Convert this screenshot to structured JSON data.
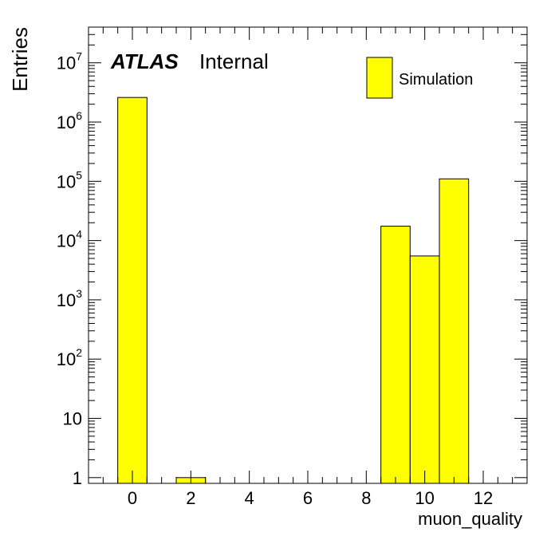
{
  "chart_data": {
    "type": "bar",
    "histogram": true,
    "xlabel": "muon_quality",
    "ylabel": "Entries",
    "xlim": [
      -1.5,
      13.5
    ],
    "ylim": [
      0.8,
      40000000
    ],
    "yscale": "log",
    "grid": false,
    "legend_position": "top-right",
    "x_ticks": [
      0,
      2,
      4,
      6,
      8,
      10,
      12
    ],
    "y_ticks": [
      {
        "base": "1",
        "exp": ""
      },
      {
        "base": "10",
        "exp": ""
      },
      {
        "base": "10",
        "exp": "2"
      },
      {
        "base": "10",
        "exp": "3"
      },
      {
        "base": "10",
        "exp": "4"
      },
      {
        "base": "10",
        "exp": "5"
      },
      {
        "base": "10",
        "exp": "6"
      },
      {
        "base": "10",
        "exp": "7"
      }
    ],
    "series": [
      {
        "name": "Simulation",
        "color": "#ffff00",
        "bin_width": 1,
        "bins": [
          {
            "x": 0,
            "value": 2600000
          },
          {
            "x": 2,
            "value": 1
          },
          {
            "x": 9,
            "value": 17500
          },
          {
            "x": 10,
            "value": 5500
          },
          {
            "x": 11,
            "value": 110000
          }
        ]
      }
    ]
  },
  "label": {
    "experiment": "ATLAS",
    "status": "Internal"
  }
}
